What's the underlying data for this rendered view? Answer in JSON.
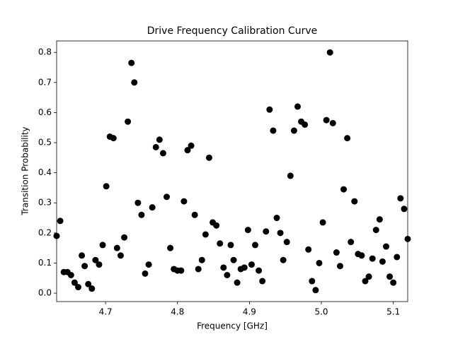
{
  "chart_data": {
    "type": "scatter",
    "title": "Drive Frequency Calibration Curve",
    "x_label": "Frequency [GHz]",
    "y_label": "Transition Probability",
    "color": "#000000",
    "x": [
      4.632,
      4.637,
      4.642,
      4.647,
      4.652,
      4.657,
      4.662,
      4.667,
      4.671,
      4.676,
      4.681,
      4.686,
      4.691,
      4.696,
      4.701,
      4.706,
      4.711,
      4.716,
      4.721,
      4.726,
      4.731,
      4.736,
      4.74,
      4.745,
      4.75,
      4.755,
      4.76,
      4.765,
      4.77,
      4.775,
      4.78,
      4.785,
      4.79,
      4.795,
      4.8,
      4.805,
      4.809,
      4.814,
      4.819,
      4.824,
      4.829,
      4.834,
      4.839,
      4.844,
      4.849,
      4.854,
      4.859,
      4.864,
      4.869,
      4.874,
      4.878,
      4.883,
      4.888,
      4.893,
      4.898,
      4.903,
      4.908,
      4.913,
      4.918,
      4.923,
      4.928,
      4.933,
      4.938,
      4.943,
      4.947,
      4.952,
      4.957,
      4.962,
      4.967,
      4.972,
      4.977,
      4.982,
      4.987,
      4.992,
      4.997,
      5.002,
      5.007,
      5.012,
      5.016,
      5.021,
      5.026,
      5.031,
      5.036,
      5.041,
      5.046,
      5.051,
      5.056,
      5.061,
      5.066,
      5.071,
      5.076,
      5.081,
      5.085,
      5.09,
      5.095,
      5.1,
      5.105,
      5.11,
      5.115,
      5.12
    ],
    "values": [
      0.19,
      0.24,
      0.07,
      0.07,
      0.06,
      0.035,
      0.02,
      0.125,
      0.09,
      0.03,
      0.015,
      0.11,
      0.095,
      0.16,
      0.355,
      0.52,
      0.515,
      0.15,
      0.125,
      0.185,
      0.57,
      0.765,
      0.7,
      0.3,
      0.26,
      0.065,
      0.095,
      0.285,
      0.485,
      0.51,
      0.465,
      0.32,
      0.15,
      0.08,
      0.075,
      0.075,
      0.305,
      0.475,
      0.49,
      0.26,
      0.08,
      0.11,
      0.195,
      0.45,
      0.235,
      0.225,
      0.165,
      0.085,
      0.06,
      0.16,
      0.11,
      0.035,
      0.08,
      0.085,
      0.21,
      0.095,
      0.16,
      0.075,
      0.04,
      0.205,
      0.61,
      0.54,
      0.25,
      0.2,
      0.11,
      0.17,
      0.39,
      0.54,
      0.62,
      0.57,
      0.56,
      0.145,
      0.04,
      0.01,
      0.1,
      0.235,
      0.575,
      0.8,
      0.565,
      0.135,
      0.09,
      0.345,
      0.515,
      0.17,
      0.305,
      0.13,
      0.125,
      0.04,
      0.055,
      0.115,
      0.21,
      0.245,
      0.105,
      0.155,
      0.055,
      0.035,
      0.12,
      0.315,
      0.28,
      0.18
    ],
    "xlim": [
      4.632,
      5.12
    ],
    "ylim": [
      -0.028,
      0.838
    ],
    "xticks": [
      4.7,
      4.8,
      4.9,
      {
        "value": 5.0,
        "label": "5.0"
      },
      5.1
    ],
    "yticks": [
      {
        "value": 0,
        "label": "0.0"
      },
      0.1,
      0.2,
      0.3,
      0.4,
      0.5,
      0.6,
      0.7,
      0.8
    ]
  }
}
